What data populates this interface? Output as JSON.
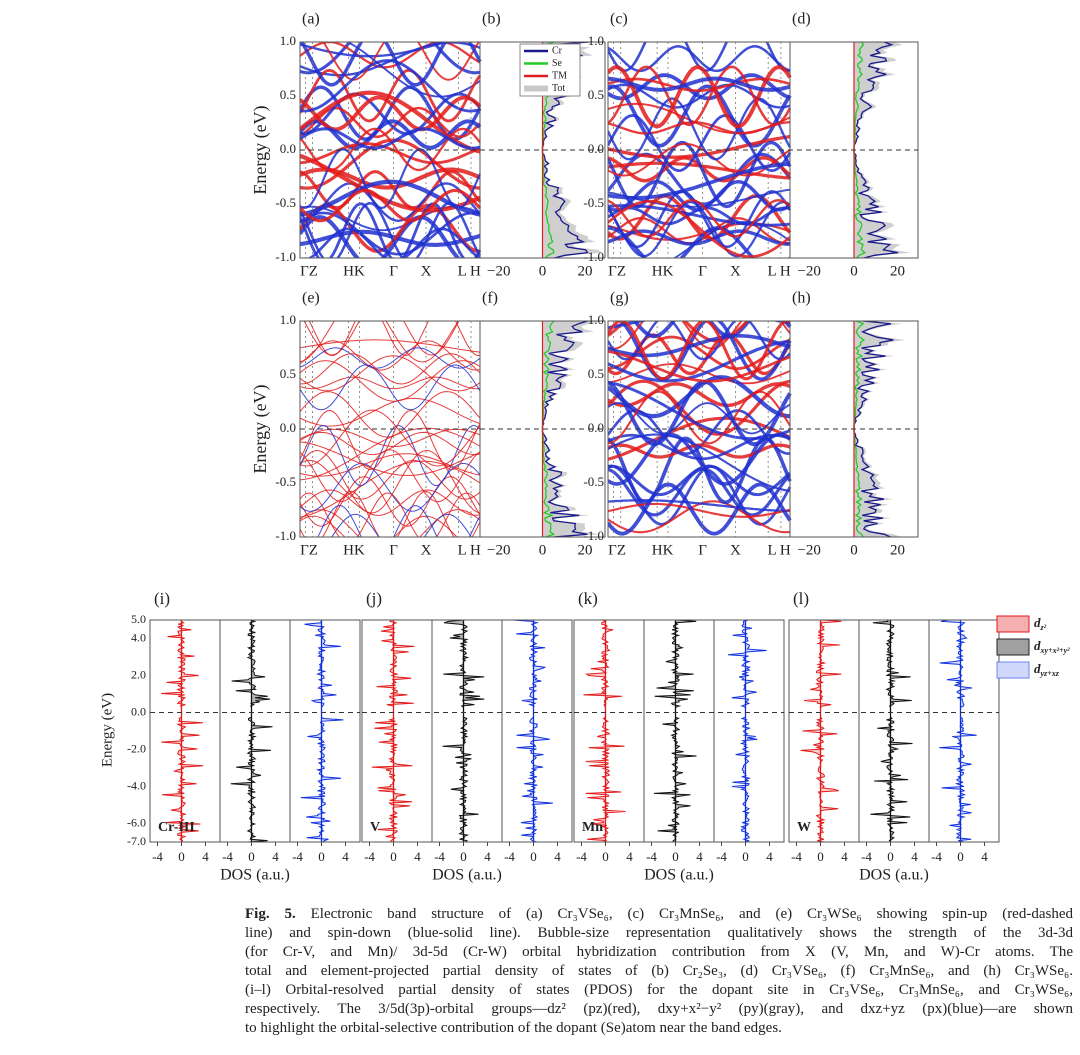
{
  "figure": {
    "top": {
      "y_label": "Energy (eV)",
      "yticks": [
        "1.0",
        "0.5",
        "0.0",
        "-0.5",
        "-1.0"
      ],
      "kpath": [
        "ΓZ",
        "HK",
        "Γ",
        "X",
        "L H"
      ],
      "dos_ticks": [
        "−20",
        "0",
        "20"
      ],
      "panels": [
        {
          "band": "(a)",
          "dos": "(b)"
        },
        {
          "band": "(c)",
          "dos": "(d)"
        },
        {
          "band": "(e)",
          "dos": "(f)"
        },
        {
          "band": "(g)",
          "dos": "(h)"
        }
      ],
      "legend": [
        "Cr",
        "Se",
        "TM",
        "Tot"
      ]
    },
    "pdos": {
      "y_label": "Energy (eV)",
      "yticks": [
        "5.0",
        "4.0",
        "2.0",
        "0.0",
        "-2.0",
        "-4.0",
        "-6.0",
        "-7.0"
      ],
      "x_label": "DOS (a.u.)",
      "xticks": [
        "-4",
        "0",
        "4"
      ],
      "panels": [
        {
          "label": "(i)",
          "site": "Cr-III"
        },
        {
          "label": "(j)",
          "site": "V"
        },
        {
          "label": "(k)",
          "site": "Mn"
        },
        {
          "label": "(l)",
          "site": "W"
        }
      ],
      "legend": [
        {
          "base": "d",
          "sub": "z²"
        },
        {
          "base": "d",
          "sub": "xy+x²+y²"
        },
        {
          "base": "d",
          "sub": "yz+xz"
        }
      ]
    },
    "caption": {
      "fig_label": "Fig. 5.",
      "lines": [
        "Electronic band structure of (a) Cr₃VSe₆, (c) Cr₃MnSe₆, and (e) Cr₃WSe₆ showing spin-up (red-dashed",
        "line) and spin-down (blue-solid line). Bubble-size representation qualitatively shows the strength of the 3d-3d",
        "(for Cr-V, and Mn)/ 3d-5d (Cr-W) orbital hybridization contribution from X (V, Mn, and W)-Cr atoms. The",
        "total and element-projected partial density of states of (b) Cr₂Se₃, (d) Cr₃VSe₆, (f) Cr₃MnSe₆, and (h) Cr₃WSe₆.",
        "(i–l) Orbital-resolved partial density of states (PDOS) for the dopant site in Cr₃VSe₆, Cr₃MnSe₆, and Cr₃WSe₆,",
        "respectively. The 3/5d(3p)-orbital groups—dz² (pz)(red), dxy+x²−y² (py)(gray), and dxz+yz (px)(blue)—are shown",
        "to highlight the orbital-selective contribution of the dopant (Se)atom near the band edges."
      ]
    }
  }
}
